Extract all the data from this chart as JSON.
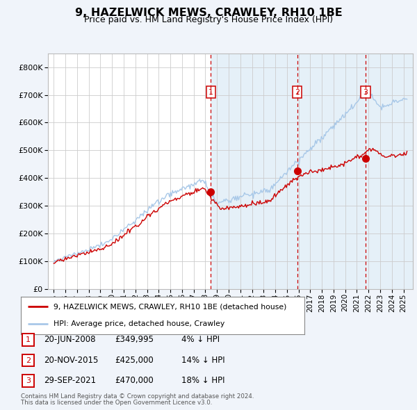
{
  "title": "9, HAZELWICK MEWS, CRAWLEY, RH10 1BE",
  "subtitle": "Price paid vs. HM Land Registry's House Price Index (HPI)",
  "footer1": "Contains HM Land Registry data © Crown copyright and database right 2024.",
  "footer2": "This data is licensed under the Open Government Licence v3.0.",
  "legend_line1": "9, HAZELWICK MEWS, CRAWLEY, RH10 1BE (detached house)",
  "legend_line2": "HPI: Average price, detached house, Crawley",
  "transactions": [
    {
      "num": 1,
      "date": "20-JUN-2008",
      "price": "£349,995",
      "pct": "4% ↓ HPI",
      "year": 2008.47,
      "value": 349995
    },
    {
      "num": 2,
      "date": "20-NOV-2015",
      "price": "£425,000",
      "pct": "14% ↓ HPI",
      "year": 2015.89,
      "value": 425000
    },
    {
      "num": 3,
      "date": "29-SEP-2021",
      "price": "£470,000",
      "pct": "18% ↓ HPI",
      "year": 2021.75,
      "value": 470000
    }
  ],
  "shaded_start": 2008.47,
  "background_color": "#f0f4fa",
  "hpi_color": "#a8c8e8",
  "price_color": "#cc0000",
  "ylim": [
    0,
    850000
  ],
  "xlim_start": 1994.5,
  "xlim_end": 2025.8,
  "yticks": [
    0,
    100000,
    200000,
    300000,
    400000,
    500000,
    600000,
    700000,
    800000
  ]
}
